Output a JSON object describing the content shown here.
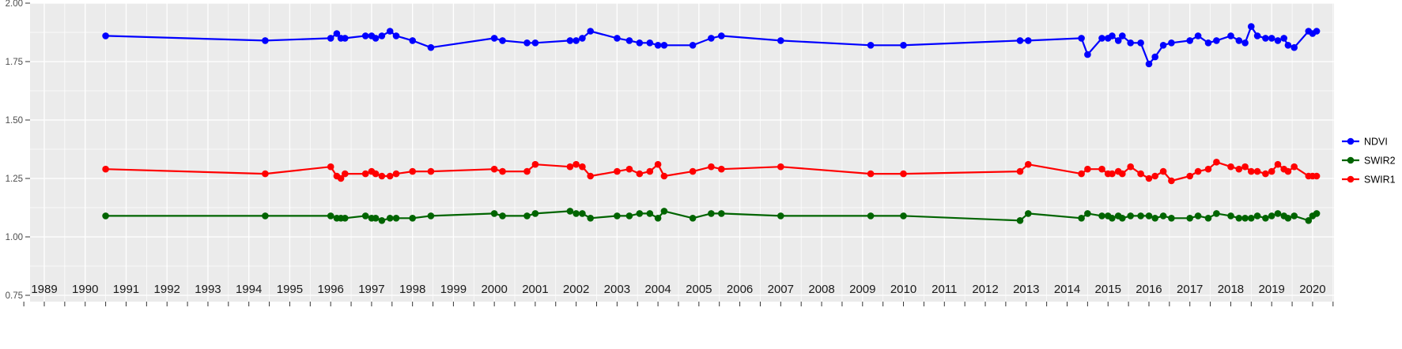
{
  "chart_data": {
    "type": "line",
    "title": "",
    "xlabel": "",
    "ylabel": "",
    "panel_bg": "#EBEBEB",
    "grid_color": "#FFFFFF",
    "tick_color": "#333333",
    "y_axis_text_color": "#4D4D4D",
    "x_axis_text_color": "#1A1A1A",
    "legend_position": "right",
    "grid": true,
    "xlim": [
      1988.65,
      2020.55
    ],
    "ylim": [
      0.75,
      2.02
    ],
    "x_ticks": [
      1989,
      1990,
      1991,
      1992,
      1993,
      1994,
      1995,
      1996,
      1997,
      1998,
      1999,
      2000,
      2001,
      2002,
      2003,
      2004,
      2005,
      2006,
      2007,
      2008,
      2009,
      2010,
      2011,
      2012,
      2013,
      2014,
      2015,
      2016,
      2017,
      2018,
      2019,
      2020
    ],
    "y_ticks": [
      "2.00",
      "1.75",
      "1.50",
      "1.25",
      "1.00",
      "0.75"
    ],
    "y_tick_values": [
      2.0,
      1.75,
      1.5,
      1.25,
      1.0,
      0.75
    ],
    "y_minor_values": [
      1.875,
      1.625,
      1.375,
      1.125,
      0.875
    ],
    "x": [
      1990.5,
      1994.4,
      1996.0,
      1996.15,
      1996.25,
      1996.35,
      1996.85,
      1997.0,
      1997.1,
      1997.25,
      1997.45,
      1997.6,
      1998.0,
      1998.45,
      2000.0,
      2000.2,
      2000.8,
      2001.0,
      2001.85,
      2002.0,
      2002.15,
      2002.35,
      2003.0,
      2003.3,
      2003.55,
      2003.8,
      2004.0,
      2004.15,
      2004.85,
      2005.3,
      2005.55,
      2007.0,
      2009.2,
      2010.0,
      2012.85,
      2013.05,
      2014.35,
      2014.5,
      2014.85,
      2015.0,
      2015.1,
      2015.25,
      2015.35,
      2015.55,
      2015.8,
      2016.0,
      2016.15,
      2016.35,
      2016.55,
      2017.0,
      2017.2,
      2017.45,
      2017.65,
      2018.0,
      2018.2,
      2018.35,
      2018.5,
      2018.65,
      2018.85,
      2019.0,
      2019.15,
      2019.3,
      2019.4,
      2019.55,
      2019.9,
      2020.0,
      2020.1
    ],
    "series": [
      {
        "name": "NDVI",
        "color": "#0000FF",
        "values": [
          1.86,
          1.84,
          1.85,
          1.87,
          1.85,
          1.85,
          1.86,
          1.86,
          1.85,
          1.86,
          1.88,
          1.86,
          1.84,
          1.81,
          1.85,
          1.84,
          1.83,
          1.83,
          1.84,
          1.84,
          1.85,
          1.88,
          1.85,
          1.84,
          1.83,
          1.83,
          1.82,
          1.82,
          1.82,
          1.85,
          1.86,
          1.84,
          1.82,
          1.82,
          1.84,
          1.84,
          1.85,
          1.78,
          1.85,
          1.85,
          1.86,
          1.84,
          1.86,
          1.83,
          1.83,
          1.74,
          1.77,
          1.82,
          1.83,
          1.84,
          1.86,
          1.83,
          1.84,
          1.86,
          1.84,
          1.83,
          1.9,
          1.86,
          1.85,
          1.85,
          1.84,
          1.85,
          1.82,
          1.81,
          1.88,
          1.87,
          1.88
        ]
      },
      {
        "name": "SWIR2",
        "color": "#006400",
        "values": [
          1.09,
          1.09,
          1.09,
          1.08,
          1.08,
          1.08,
          1.09,
          1.08,
          1.08,
          1.07,
          1.08,
          1.08,
          1.08,
          1.09,
          1.1,
          1.09,
          1.09,
          1.1,
          1.11,
          1.1,
          1.1,
          1.08,
          1.09,
          1.09,
          1.1,
          1.1,
          1.08,
          1.11,
          1.08,
          1.1,
          1.1,
          1.09,
          1.09,
          1.09,
          1.07,
          1.1,
          1.08,
          1.1,
          1.09,
          1.09,
          1.08,
          1.09,
          1.08,
          1.09,
          1.09,
          1.09,
          1.08,
          1.09,
          1.08,
          1.08,
          1.09,
          1.08,
          1.1,
          1.09,
          1.08,
          1.08,
          1.08,
          1.09,
          1.08,
          1.09,
          1.1,
          1.09,
          1.08,
          1.09,
          1.07,
          1.09,
          1.1
        ]
      },
      {
        "name": "SWIR1",
        "color": "#FF0000",
        "values": [
          1.29,
          1.27,
          1.3,
          1.26,
          1.25,
          1.27,
          1.27,
          1.28,
          1.27,
          1.26,
          1.26,
          1.27,
          1.28,
          1.28,
          1.29,
          1.28,
          1.28,
          1.31,
          1.3,
          1.31,
          1.3,
          1.26,
          1.28,
          1.29,
          1.27,
          1.28,
          1.31,
          1.26,
          1.28,
          1.3,
          1.29,
          1.3,
          1.27,
          1.27,
          1.28,
          1.31,
          1.27,
          1.29,
          1.29,
          1.27,
          1.27,
          1.28,
          1.27,
          1.3,
          1.27,
          1.25,
          1.26,
          1.28,
          1.24,
          1.26,
          1.28,
          1.29,
          1.32,
          1.3,
          1.29,
          1.3,
          1.28,
          1.28,
          1.27,
          1.28,
          1.31,
          1.29,
          1.28,
          1.3,
          1.26,
          1.26,
          1.26
        ]
      }
    ]
  }
}
